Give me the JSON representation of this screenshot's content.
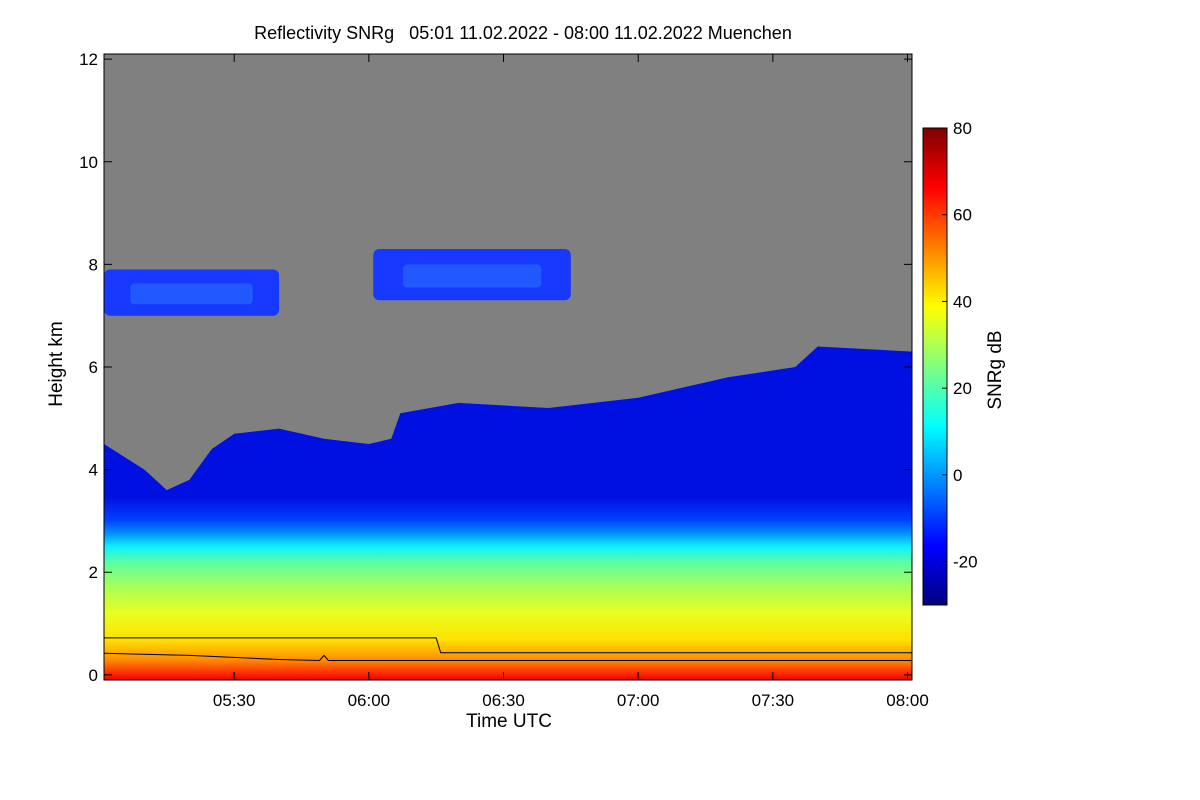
{
  "chart_data": {
    "type": "heatmap",
    "title": "Reflectivity SNRg   05:01 11.02.2022 - 08:00 11.02.2022 Muenchen",
    "xlabel": "Time UTC",
    "ylabel": "Height km",
    "colorbar_label": "SNRg dB",
    "xlim": [
      "05:01",
      "08:01"
    ],
    "ylim": [
      -0.1,
      12.1
    ],
    "x_ticks": [
      "05:30",
      "06:00",
      "06:30",
      "07:00",
      "07:30",
      "08:00"
    ],
    "y_ticks": [
      "0",
      "2",
      "4",
      "6",
      "8",
      "10",
      "12"
    ],
    "colorbar_range": [
      -30,
      80
    ],
    "colorbar_ticks": [
      "-20",
      "0",
      "20",
      "40",
      "60",
      "80"
    ],
    "no_signal_color": "#808080",
    "colormap": [
      "#00007f",
      "#0000ff",
      "#0080ff",
      "#00ffff",
      "#80ff80",
      "#ffff00",
      "#ff8000",
      "#ff0000",
      "#7f0000"
    ],
    "cloud_top_km": [
      {
        "t": "05:01",
        "h": 4.5
      },
      {
        "t": "05:10",
        "h": 4.0
      },
      {
        "t": "05:15",
        "h": 3.6
      },
      {
        "t": "05:20",
        "h": 3.8
      },
      {
        "t": "05:25",
        "h": 4.4
      },
      {
        "t": "05:30",
        "h": 4.7
      },
      {
        "t": "05:40",
        "h": 4.8
      },
      {
        "t": "05:50",
        "h": 4.6
      },
      {
        "t": "06:00",
        "h": 4.5
      },
      {
        "t": "06:05",
        "h": 4.6
      },
      {
        "t": "06:07",
        "h": 5.1
      },
      {
        "t": "06:20",
        "h": 5.3
      },
      {
        "t": "06:40",
        "h": 5.2
      },
      {
        "t": "06:50",
        "h": 5.3
      },
      {
        "t": "07:00",
        "h": 5.4
      },
      {
        "t": "07:10",
        "h": 5.6
      },
      {
        "t": "07:20",
        "h": 5.8
      },
      {
        "t": "07:35",
        "h": 6.0
      },
      {
        "t": "07:40",
        "h": 6.4
      },
      {
        "t": "08:01",
        "h": 6.3
      }
    ],
    "upper_cloud_layers": [
      {
        "start": "05:01",
        "end": "05:40",
        "base_km": 7.0,
        "top_km": 7.9
      },
      {
        "start": "06:01",
        "end": "06:45",
        "base_km": 7.3,
        "top_km": 8.3
      }
    ],
    "lines": [
      {
        "points": [
          {
            "t": "05:01",
            "h": 0.72
          },
          {
            "t": "06:15",
            "h": 0.72
          },
          {
            "t": "06:16",
            "h": 0.43
          },
          {
            "t": "08:01",
            "h": 0.43
          }
        ]
      },
      {
        "points": [
          {
            "t": "05:01",
            "h": 0.42
          },
          {
            "t": "05:20",
            "h": 0.38
          },
          {
            "t": "05:40",
            "h": 0.3
          },
          {
            "t": "05:49",
            "h": 0.28
          },
          {
            "t": "05:50",
            "h": 0.38
          },
          {
            "t": "05:51",
            "h": 0.28
          },
          {
            "t": "08:01",
            "h": 0.28
          }
        ]
      }
    ]
  }
}
